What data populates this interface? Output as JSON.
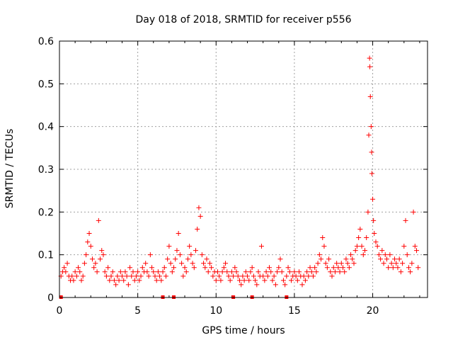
{
  "chart_data": {
    "type": "scatter",
    "title": "Day 018 of 2018, SRMTID for receiver p556",
    "xlabel": "GPS time / hours",
    "ylabel": "SRMTID / TECUs",
    "xlim": [
      0,
      23.5
    ],
    "ylim": [
      0,
      0.6
    ],
    "xticks": [
      0,
      5,
      10,
      15,
      20
    ],
    "xtick_labels": [
      "0",
      "5",
      "10",
      "15",
      "20"
    ],
    "yticks": [
      0,
      0.1,
      0.2,
      0.3,
      0.4,
      0.5,
      0.6
    ],
    "ytick_labels": [
      "0",
      "0.1",
      "0.2",
      "0.3",
      "0.4",
      "0.5",
      "0.6"
    ],
    "grid": true,
    "marker": "+",
    "color": "#ff0000",
    "series": [
      {
        "name": "SRMTID",
        "points": [
          [
            0.1,
            0.05
          ],
          [
            0.2,
            0.06
          ],
          [
            0.3,
            0.07
          ],
          [
            0.4,
            0.06
          ],
          [
            0.5,
            0.08
          ],
          [
            0.6,
            0.05
          ],
          [
            0.7,
            0.04
          ],
          [
            0.8,
            0.05
          ],
          [
            0.9,
            0.04
          ],
          [
            1.0,
            0.06
          ],
          [
            1.1,
            0.05
          ],
          [
            1.2,
            0.07
          ],
          [
            1.3,
            0.06
          ],
          [
            1.4,
            0.04
          ],
          [
            1.5,
            0.05
          ],
          [
            1.6,
            0.08
          ],
          [
            1.7,
            0.1
          ],
          [
            1.8,
            0.13
          ],
          [
            1.9,
            0.15
          ],
          [
            2.0,
            0.12
          ],
          [
            2.1,
            0.09
          ],
          [
            2.2,
            0.07
          ],
          [
            2.3,
            0.08
          ],
          [
            2.4,
            0.06
          ],
          [
            2.5,
            0.18
          ],
          [
            2.6,
            0.09
          ],
          [
            2.7,
            0.11
          ],
          [
            2.8,
            0.1
          ],
          [
            2.9,
            0.06
          ],
          [
            3.0,
            0.05
          ],
          [
            3.1,
            0.07
          ],
          [
            3.2,
            0.04
          ],
          [
            3.3,
            0.05
          ],
          [
            3.4,
            0.06
          ],
          [
            3.5,
            0.04
          ],
          [
            3.6,
            0.03
          ],
          [
            3.7,
            0.05
          ],
          [
            3.8,
            0.04
          ],
          [
            3.9,
            0.06
          ],
          [
            4.0,
            0.05
          ],
          [
            4.1,
            0.04
          ],
          [
            4.2,
            0.06
          ],
          [
            4.3,
            0.05
          ],
          [
            4.4,
            0.03
          ],
          [
            4.5,
            0.07
          ],
          [
            4.6,
            0.05
          ],
          [
            4.7,
            0.06
          ],
          [
            4.8,
            0.04
          ],
          [
            4.9,
            0.05
          ],
          [
            5.0,
            0.06
          ],
          [
            5.1,
            0.04
          ],
          [
            5.2,
            0.05
          ],
          [
            5.3,
            0.07
          ],
          [
            5.4,
            0.06
          ],
          [
            5.5,
            0.08
          ],
          [
            5.6,
            0.06
          ],
          [
            5.7,
            0.05
          ],
          [
            5.8,
            0.1
          ],
          [
            5.9,
            0.07
          ],
          [
            6.0,
            0.06
          ],
          [
            6.1,
            0.05
          ],
          [
            6.2,
            0.04
          ],
          [
            6.3,
            0.06
          ],
          [
            6.4,
            0.05
          ],
          [
            6.5,
            0.04
          ],
          [
            6.6,
            0.06
          ],
          [
            6.7,
            0.07
          ],
          [
            6.8,
            0.05
          ],
          [
            6.9,
            0.09
          ],
          [
            7.0,
            0.12
          ],
          [
            7.1,
            0.08
          ],
          [
            7.2,
            0.06
          ],
          [
            7.3,
            0.07
          ],
          [
            7.4,
            0.09
          ],
          [
            7.5,
            0.11
          ],
          [
            7.6,
            0.15
          ],
          [
            7.7,
            0.1
          ],
          [
            7.8,
            0.08
          ],
          [
            7.9,
            0.05
          ],
          [
            8.0,
            0.07
          ],
          [
            8.1,
            0.06
          ],
          [
            8.2,
            0.09
          ],
          [
            8.3,
            0.12
          ],
          [
            8.4,
            0.1
          ],
          [
            8.5,
            0.08
          ],
          [
            8.6,
            0.07
          ],
          [
            8.7,
            0.11
          ],
          [
            8.8,
            0.16
          ],
          [
            8.9,
            0.21
          ],
          [
            9.0,
            0.19
          ],
          [
            9.1,
            0.1
          ],
          [
            9.2,
            0.08
          ],
          [
            9.3,
            0.07
          ],
          [
            9.4,
            0.09
          ],
          [
            9.5,
            0.06
          ],
          [
            9.6,
            0.08
          ],
          [
            9.7,
            0.07
          ],
          [
            9.8,
            0.05
          ],
          [
            9.9,
            0.06
          ],
          [
            10.0,
            0.04
          ],
          [
            10.1,
            0.06
          ],
          [
            10.2,
            0.05
          ],
          [
            10.3,
            0.04
          ],
          [
            10.4,
            0.06
          ],
          [
            10.5,
            0.07
          ],
          [
            10.6,
            0.08
          ],
          [
            10.7,
            0.06
          ],
          [
            10.8,
            0.05
          ],
          [
            10.9,
            0.04
          ],
          [
            11.0,
            0.06
          ],
          [
            11.1,
            0.05
          ],
          [
            11.2,
            0.07
          ],
          [
            11.3,
            0.06
          ],
          [
            11.4,
            0.05
          ],
          [
            11.5,
            0.04
          ],
          [
            11.6,
            0.03
          ],
          [
            11.7,
            0.05
          ],
          [
            11.8,
            0.04
          ],
          [
            11.9,
            0.06
          ],
          [
            12.0,
            0.05
          ],
          [
            12.1,
            0.04
          ],
          [
            12.2,
            0.06
          ],
          [
            12.3,
            0.07
          ],
          [
            12.4,
            0.05
          ],
          [
            12.5,
            0.04
          ],
          [
            12.6,
            0.03
          ],
          [
            12.7,
            0.06
          ],
          [
            12.8,
            0.05
          ],
          [
            12.9,
            0.12
          ],
          [
            13.0,
            0.05
          ],
          [
            13.1,
            0.04
          ],
          [
            13.2,
            0.06
          ],
          [
            13.3,
            0.05
          ],
          [
            13.4,
            0.07
          ],
          [
            13.5,
            0.06
          ],
          [
            13.6,
            0.04
          ],
          [
            13.7,
            0.05
          ],
          [
            13.8,
            0.03
          ],
          [
            13.9,
            0.06
          ],
          [
            14.0,
            0.07
          ],
          [
            14.1,
            0.09
          ],
          [
            14.2,
            0.06
          ],
          [
            14.3,
            0.04
          ],
          [
            14.4,
            0.03
          ],
          [
            14.5,
            0.05
          ],
          [
            14.6,
            0.07
          ],
          [
            14.7,
            0.06
          ],
          [
            14.8,
            0.04
          ],
          [
            14.9,
            0.05
          ],
          [
            15.0,
            0.06
          ],
          [
            15.1,
            0.05
          ],
          [
            15.2,
            0.04
          ],
          [
            15.3,
            0.06
          ],
          [
            15.4,
            0.05
          ],
          [
            15.5,
            0.03
          ],
          [
            15.6,
            0.05
          ],
          [
            15.7,
            0.04
          ],
          [
            15.8,
            0.06
          ],
          [
            15.9,
            0.05
          ],
          [
            16.0,
            0.07
          ],
          [
            16.1,
            0.06
          ],
          [
            16.2,
            0.05
          ],
          [
            16.3,
            0.07
          ],
          [
            16.4,
            0.06
          ],
          [
            16.5,
            0.08
          ],
          [
            16.6,
            0.1
          ],
          [
            16.7,
            0.09
          ],
          [
            16.8,
            0.14
          ],
          [
            16.9,
            0.12
          ],
          [
            17.0,
            0.08
          ],
          [
            17.1,
            0.07
          ],
          [
            17.2,
            0.09
          ],
          [
            17.3,
            0.06
          ],
          [
            17.4,
            0.05
          ],
          [
            17.5,
            0.07
          ],
          [
            17.6,
            0.06
          ],
          [
            17.7,
            0.08
          ],
          [
            17.8,
            0.07
          ],
          [
            17.9,
            0.06
          ],
          [
            18.0,
            0.08
          ],
          [
            18.1,
            0.07
          ],
          [
            18.2,
            0.06
          ],
          [
            18.3,
            0.09
          ],
          [
            18.4,
            0.08
          ],
          [
            18.5,
            0.07
          ],
          [
            18.6,
            0.1
          ],
          [
            18.7,
            0.09
          ],
          [
            18.8,
            0.08
          ],
          [
            18.9,
            0.11
          ],
          [
            19.0,
            0.12
          ],
          [
            19.1,
            0.14
          ],
          [
            19.2,
            0.16
          ],
          [
            19.3,
            0.12
          ],
          [
            19.4,
            0.1
          ],
          [
            19.5,
            0.11
          ],
          [
            19.6,
            0.14
          ],
          [
            19.7,
            0.2
          ],
          [
            19.75,
            0.38
          ],
          [
            19.8,
            0.56
          ],
          [
            19.82,
            0.54
          ],
          [
            19.85,
            0.47
          ],
          [
            19.9,
            0.4
          ],
          [
            19.93,
            0.34
          ],
          [
            19.95,
            0.29
          ],
          [
            20.0,
            0.23
          ],
          [
            20.05,
            0.18
          ],
          [
            20.1,
            0.15
          ],
          [
            20.2,
            0.13
          ],
          [
            20.3,
            0.12
          ],
          [
            20.4,
            0.1
          ],
          [
            20.5,
            0.09
          ],
          [
            20.6,
            0.11
          ],
          [
            20.7,
            0.08
          ],
          [
            20.8,
            0.1
          ],
          [
            20.9,
            0.09
          ],
          [
            21.0,
            0.07
          ],
          [
            21.1,
            0.1
          ],
          [
            21.2,
            0.08
          ],
          [
            21.3,
            0.07
          ],
          [
            21.4,
            0.09
          ],
          [
            21.5,
            0.08
          ],
          [
            21.6,
            0.07
          ],
          [
            21.7,
            0.09
          ],
          [
            21.8,
            0.06
          ],
          [
            21.9,
            0.08
          ],
          [
            22.0,
            0.12
          ],
          [
            22.1,
            0.18
          ],
          [
            22.2,
            0.1
          ],
          [
            22.3,
            0.07
          ],
          [
            22.4,
            0.06
          ],
          [
            22.5,
            0.08
          ],
          [
            22.6,
            0.2
          ],
          [
            22.7,
            0.12
          ],
          [
            22.8,
            0.11
          ],
          [
            22.9,
            0.07
          ]
        ]
      }
    ],
    "baseline_markers": [
      0.1,
      6.6,
      7.3,
      11.1,
      12.3,
      14.5
    ]
  }
}
